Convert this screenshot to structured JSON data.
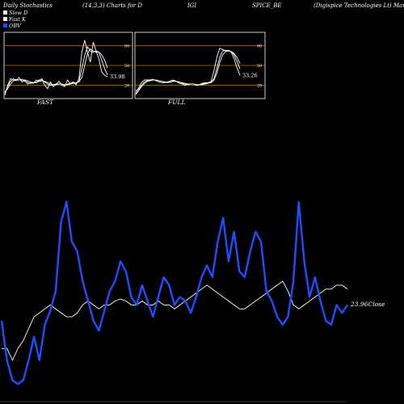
{
  "header": {
    "left": "Daily Stochastics",
    "params": "(14,3,3) Charts for D",
    "code": "IGI",
    "symbol": "SPICE_BE",
    "company": "(Digispice  Technologies Lt) Manufactu"
  },
  "legend": [
    {
      "label": "Slow D",
      "swatch": "#ffffff"
    },
    {
      "label": "Fast K",
      "swatch": "#ffffff"
    },
    {
      "label": "OBV",
      "swatch": "#1e4fff"
    }
  ],
  "colors": {
    "obv": "#1e4fff",
    "price": "#ffffff",
    "level": "#c87800",
    "background": "#000000"
  },
  "chart_data": [
    {
      "type": "line",
      "panel": "FAST",
      "label": "FAST",
      "ylim": [
        0,
        100
      ],
      "levels": [
        20,
        50,
        80
      ],
      "ticks": [
        "80",
        "50",
        "20"
      ],
      "last_value_label": "33.98",
      "series": [
        {
          "values": [
            5,
            20,
            30,
            28,
            27,
            32,
            25,
            28,
            22,
            24,
            23,
            28,
            27,
            30,
            20,
            15,
            25,
            18,
            22,
            26,
            20,
            18,
            28,
            22,
            24,
            21,
            30,
            70,
            88,
            70,
            55,
            85,
            72,
            60,
            40,
            35,
            33
          ]
        },
        {
          "values": [
            8,
            18,
            26,
            30,
            28,
            28,
            29,
            26,
            25,
            23,
            24,
            25,
            28,
            28,
            25,
            22,
            20,
            21,
            22,
            22,
            22,
            20,
            22,
            23,
            25,
            23,
            26,
            45,
            65,
            78,
            72,
            70,
            72,
            70,
            58,
            45,
            36
          ]
        },
        {
          "values": [
            10,
            15,
            22,
            27,
            29,
            28,
            28,
            28,
            27,
            25,
            24,
            24,
            26,
            27,
            26,
            24,
            22,
            21,
            21,
            22,
            22,
            21,
            21,
            22,
            23,
            24,
            25,
            32,
            50,
            68,
            75,
            72,
            70,
            70,
            66,
            58,
            46
          ]
        }
      ]
    },
    {
      "type": "line",
      "panel": "FULL",
      "label": "FULL",
      "ylim": [
        0,
        100
      ],
      "levels": [
        20,
        50,
        80
      ],
      "ticks": [
        "80",
        "50",
        "20"
      ],
      "last_value_label": "33.26",
      "series": [
        {
          "values": [
            8,
            16,
            24,
            28,
            28,
            28,
            29,
            27,
            25,
            24,
            24,
            25,
            27,
            28,
            26,
            23,
            22,
            20,
            22,
            22,
            22,
            20,
            21,
            23,
            24,
            24,
            26,
            42,
            62,
            76,
            74,
            72,
            73,
            70,
            60,
            46,
            35
          ]
        },
        {
          "values": [
            12,
            14,
            20,
            25,
            27,
            28,
            28,
            28,
            27,
            26,
            25,
            24,
            25,
            27,
            26,
            25,
            23,
            22,
            21,
            22,
            22,
            21,
            21,
            22,
            23,
            23,
            25,
            30,
            45,
            62,
            72,
            73,
            72,
            71,
            66,
            56,
            45
          ]
        },
        {
          "values": [
            6,
            12,
            18,
            23,
            26,
            27,
            28,
            28,
            27,
            26,
            25,
            25,
            25,
            26,
            26,
            25,
            24,
            23,
            22,
            22,
            22,
            21,
            21,
            21,
            22,
            23,
            24,
            28,
            38,
            54,
            66,
            71,
            72,
            71,
            68,
            62,
            53
          ]
        }
      ]
    },
    {
      "type": "line",
      "panel": "price-obv",
      "close_label": "23.96Close",
      "series": [
        {
          "name": "OBV",
          "values": [
            40,
            20,
            10,
            8,
            10,
            20,
            32,
            20,
            38,
            45,
            55,
            90,
            100,
            80,
            75,
            60,
            50,
            40,
            35,
            45,
            55,
            60,
            70,
            65,
            52,
            48,
            58,
            50,
            42,
            52,
            62,
            58,
            48,
            52,
            50,
            44,
            52,
            62,
            68,
            62,
            80,
            92,
            70,
            85,
            65,
            62,
            75,
            85,
            80,
            55,
            50,
            42,
            38,
            42,
            60,
            100,
            70,
            52,
            62,
            50,
            40,
            38,
            48,
            44,
            48
          ]
        },
        {
          "name": "Close",
          "values": [
            26,
            26,
            20,
            26,
            30,
            36,
            42,
            44,
            46,
            48,
            46,
            44,
            42,
            42,
            44,
            48,
            50,
            48,
            46,
            48,
            48,
            50,
            51,
            50,
            48,
            48,
            50,
            48,
            48,
            50,
            48,
            48,
            46,
            48,
            50,
            52,
            54,
            56,
            58,
            56,
            54,
            52,
            50,
            48,
            46,
            46,
            48,
            50,
            52,
            54,
            56,
            58,
            60,
            55,
            48,
            46,
            48,
            50,
            52,
            54,
            56,
            56,
            58,
            58,
            56
          ]
        }
      ]
    }
  ]
}
